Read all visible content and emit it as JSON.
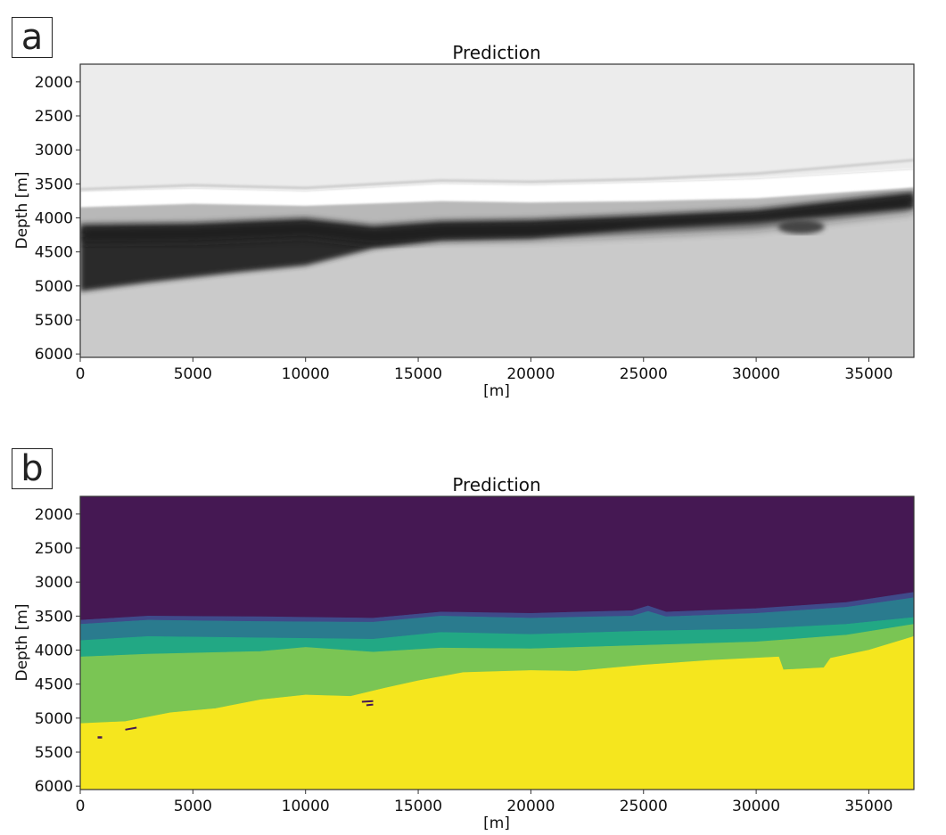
{
  "figure": {
    "panels": [
      {
        "label": "a",
        "title": "Prediction",
        "xlabel": "[m]",
        "ylabel": "Depth [m]"
      },
      {
        "label": "b",
        "title": "Prediction",
        "xlabel": "[m]",
        "ylabel": "Depth [m]"
      }
    ]
  },
  "chart_data": [
    {
      "type": "heatmap",
      "panel": "a",
      "title": "Prediction",
      "xlabel": "[m]",
      "ylabel": "Depth [m]",
      "colormap": "grayscale (reversed: white = low, black = high)",
      "xlim": [
        0,
        37000
      ],
      "ylim": [
        6050,
        1740
      ],
      "xticks": [
        0,
        5000,
        10000,
        15000,
        20000,
        25000,
        30000,
        35000
      ],
      "yticks": [
        2000,
        2500,
        3000,
        3500,
        4000,
        4500,
        5000,
        5500,
        6000
      ],
      "grid": false,
      "description": "Continuous prediction section: light upper zone, thin bright white band near 3500-3850 m, dark black band dipping from ~4100-5050 m on left to ~3600-3850 m on right, medium-gray lower zone",
      "features": [
        {
          "name": "upper-zone",
          "tone": "#ececec"
        },
        {
          "name": "thin-dark-line",
          "tone": "#bdbdbd",
          "x": [
            0,
            5000,
            10000,
            16000,
            20000,
            25000,
            30000,
            37000
          ],
          "depth": [
            3580,
            3520,
            3560,
            3450,
            3470,
            3430,
            3350,
            3150
          ]
        },
        {
          "name": "white-band-top",
          "tone": "#ffffff",
          "x": [
            0,
            5000,
            10000,
            16000,
            20000,
            25000,
            30000,
            37000
          ],
          "depth": [
            3600,
            3560,
            3600,
            3490,
            3510,
            3470,
            3420,
            3280
          ]
        },
        {
          "name": "gray-band-top",
          "tone": "#b8b8b8",
          "x": [
            0,
            5000,
            10000,
            16000,
            20000,
            25000,
            30000,
            37000
          ],
          "depth": [
            3850,
            3800,
            3830,
            3760,
            3780,
            3760,
            3720,
            3560
          ]
        },
        {
          "name": "dark-band-top",
          "tone": "#1a1a1a",
          "x": [
            0,
            5000,
            10000,
            13000,
            16000,
            20000,
            25000,
            30000,
            37000
          ],
          "depth": [
            4100,
            4080,
            4010,
            4120,
            4050,
            4030,
            3960,
            3880,
            3620
          ]
        },
        {
          "name": "dark-band-bottom",
          "x": [
            0,
            3000,
            7000,
            10000,
            13000,
            16000,
            20000,
            25000,
            30000,
            37000
          ],
          "depth": [
            5080,
            4950,
            4800,
            4700,
            4450,
            4330,
            4300,
            4150,
            4050,
            3850
          ]
        },
        {
          "name": "lower-zone",
          "tone": "#cacaca"
        }
      ]
    },
    {
      "type": "heatmap",
      "panel": "b",
      "title": "Prediction",
      "xlabel": "[m]",
      "ylabel": "Depth [m]",
      "colormap": "viridis (6 classes)",
      "xlim": [
        0,
        37000
      ],
      "ylim": [
        6050,
        1740
      ],
      "xticks": [
        0,
        5000,
        10000,
        15000,
        20000,
        25000,
        30000,
        35000
      ],
      "yticks": [
        2000,
        2500,
        3000,
        3500,
        4000,
        4500,
        5000,
        5500,
        6000
      ],
      "grid": false,
      "classes": [
        {
          "id": 0,
          "color": "#451853"
        },
        {
          "id": 1,
          "color": "#3f4a8a"
        },
        {
          "id": 2,
          "color": "#2a7b8e"
        },
        {
          "id": 3,
          "color": "#22a884"
        },
        {
          "id": 4,
          "color": "#7ac554"
        },
        {
          "id": 5,
          "color": "#f5e61e"
        }
      ],
      "boundaries": [
        {
          "between": [
            0,
            1
          ],
          "x": [
            0,
            3000,
            8000,
            13000,
            16000,
            20000,
            24500,
            25200,
            26000,
            30000,
            34000,
            37000
          ],
          "depth": [
            3560,
            3500,
            3510,
            3530,
            3440,
            3460,
            3420,
            3350,
            3440,
            3390,
            3300,
            3150
          ]
        },
        {
          "between": [
            1,
            2
          ],
          "x": [
            0,
            3000,
            8000,
            13000,
            16000,
            20000,
            24500,
            25200,
            26000,
            30000,
            34000,
            37000
          ],
          "depth": [
            3620,
            3560,
            3580,
            3590,
            3500,
            3530,
            3500,
            3430,
            3510,
            3460,
            3370,
            3230
          ]
        },
        {
          "between": [
            2,
            3
          ],
          "x": [
            0,
            3000,
            8000,
            13000,
            16000,
            20000,
            25000,
            30000,
            34000,
            37000
          ],
          "depth": [
            3860,
            3800,
            3820,
            3840,
            3740,
            3770,
            3720,
            3690,
            3620,
            3520
          ]
        },
        {
          "between": [
            3,
            4
          ],
          "x": [
            0,
            3000,
            8000,
            10000,
            13000,
            16000,
            20000,
            25000,
            30000,
            34000,
            37000
          ],
          "depth": [
            4100,
            4060,
            4020,
            3960,
            4030,
            3970,
            3980,
            3930,
            3880,
            3780,
            3620
          ]
        },
        {
          "between": [
            4,
            5
          ],
          "x": [
            0,
            2000,
            4000,
            6000,
            8000,
            10000,
            12000,
            13500,
            15000,
            17000,
            20000,
            22000,
            25000,
            28000,
            31000,
            31200,
            33000,
            33300,
            35000,
            37000
          ],
          "depth": [
            5080,
            5050,
            4920,
            4860,
            4730,
            4660,
            4680,
            4560,
            4450,
            4330,
            4300,
            4310,
            4220,
            4150,
            4100,
            4290,
            4260,
            4120,
            4000,
            3800
          ]
        }
      ],
      "artifacts": [
        {
          "x": 850,
          "depth": 5280,
          "color": "#451853"
        },
        {
          "x": [
            2000,
            2500
          ],
          "depth": [
            5170,
            5140
          ],
          "color": "#451853"
        },
        {
          "x": [
            12500,
            13000
          ],
          "depth": [
            4760,
            4750
          ],
          "color": "#451853"
        },
        {
          "x": [
            12700,
            13000
          ],
          "depth": [
            4810,
            4800
          ],
          "color": "#451853"
        }
      ]
    }
  ]
}
